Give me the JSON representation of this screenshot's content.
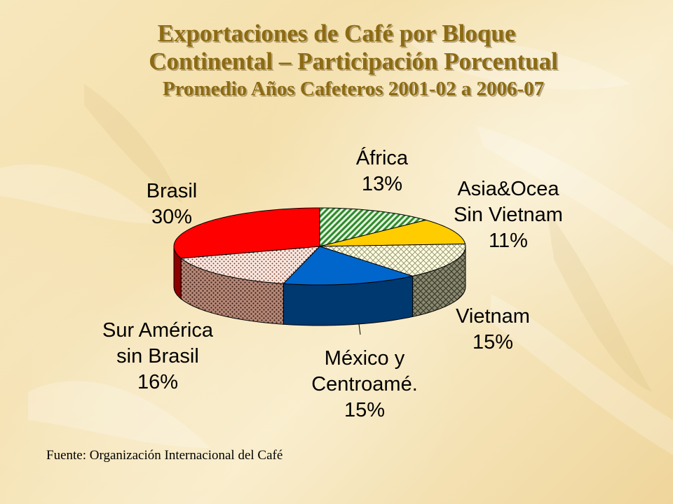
{
  "slide": {
    "title_line1": "Exportaciones de Café por Bloque",
    "title_line2": "Continental – Participación Porcentual",
    "title_line3": "Promedio Años Cafeteros 2001-02 a 2006-07",
    "source": "Fuente: Organización Internacional del Café"
  },
  "chart_data": {
    "type": "pie",
    "title": "Exportaciones de Café por Bloque Continental – Participación Porcentual",
    "subtitle": "Promedio Años Cafeteros 2001-02 a 2006-07",
    "style": "3d",
    "slices": [
      {
        "label_lines": [
          "África"
        ],
        "value": 13,
        "value_label": "13%",
        "color": "#2e8b2e",
        "pattern": "diagonal-hatch"
      },
      {
        "label_lines": [
          "Asia&Ocea",
          "Sin Vietnam"
        ],
        "value": 11,
        "value_label": "11%",
        "color": "#ffcc00",
        "pattern": "solid"
      },
      {
        "label_lines": [
          "Vietnam"
        ],
        "value": 15,
        "value_label": "15%",
        "color": "#6e6e4a",
        "pattern": "cross-hatch"
      },
      {
        "label_lines": [
          "México y",
          "Centroamé."
        ],
        "value": 15,
        "value_label": "15%",
        "color": "#0066cc",
        "pattern": "solid"
      },
      {
        "label_lines": [
          "Sur América",
          "sin Brasil"
        ],
        "value": 16,
        "value_label": "16%",
        "color": "#7a4030",
        "pattern": "dotted"
      },
      {
        "label_lines": [
          "Brasil"
        ],
        "value": 30,
        "value_label": "30%",
        "color": "#ff0000",
        "pattern": "solid"
      }
    ]
  }
}
